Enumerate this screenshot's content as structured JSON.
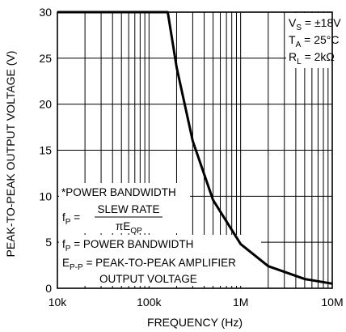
{
  "chart_data": {
    "type": "line",
    "xlabel": "FREQUENCY (Hz)",
    "ylabel": "PEAK-TO-PEAK OUTPUT VOLTAGE (V)",
    "xscale": "log",
    "xlim": [
      10000,
      10000000
    ],
    "ylim": [
      0,
      30
    ],
    "grid": true,
    "x_ticks": [
      "10k",
      "100k",
      "1M",
      "10M"
    ],
    "x_tick_values": [
      10000,
      100000,
      1000000,
      10000000
    ],
    "y_ticks": [
      "0",
      "5",
      "10",
      "15",
      "20",
      "25",
      "30"
    ],
    "y_tick_values": [
      0,
      5,
      10,
      15,
      20,
      25,
      30
    ],
    "series": [
      {
        "x": [
          10000,
          100000,
          160000,
          200000,
          300000,
          500000,
          1000000,
          2000000,
          5000000,
          10000000
        ],
        "y": [
          30,
          30,
          30,
          24,
          16,
          9.6,
          4.8,
          2.4,
          1.0,
          0.5
        ]
      }
    ],
    "conditions": {
      "vs": {
        "main": "V",
        "sub": "S",
        "rest": " = ±18V"
      },
      "ta": {
        "main": "T",
        "sub": "A",
        "rest": " = 25°C"
      },
      "rl": {
        "main": "R",
        "sub": "L",
        "rest": " = 2kΩ"
      }
    },
    "annotation": {
      "title": "*POWER BANDWIDTH",
      "formula_lhs": {
        "main": "f",
        "sub": "P",
        "rest": " ="
      },
      "formula_num": "SLEW RATE",
      "formula_den": {
        "main": "πE",
        "sub": "OP"
      },
      "def1": {
        "main": "f",
        "sub": "P",
        "rest": " = POWER BANDWIDTH"
      },
      "def2": {
        "main": "E",
        "sub": "P-P",
        "rest": " = PEAK-TO-PEAK AMPLIFIER"
      },
      "def2_cont": "OUTPUT VOLTAGE"
    }
  }
}
